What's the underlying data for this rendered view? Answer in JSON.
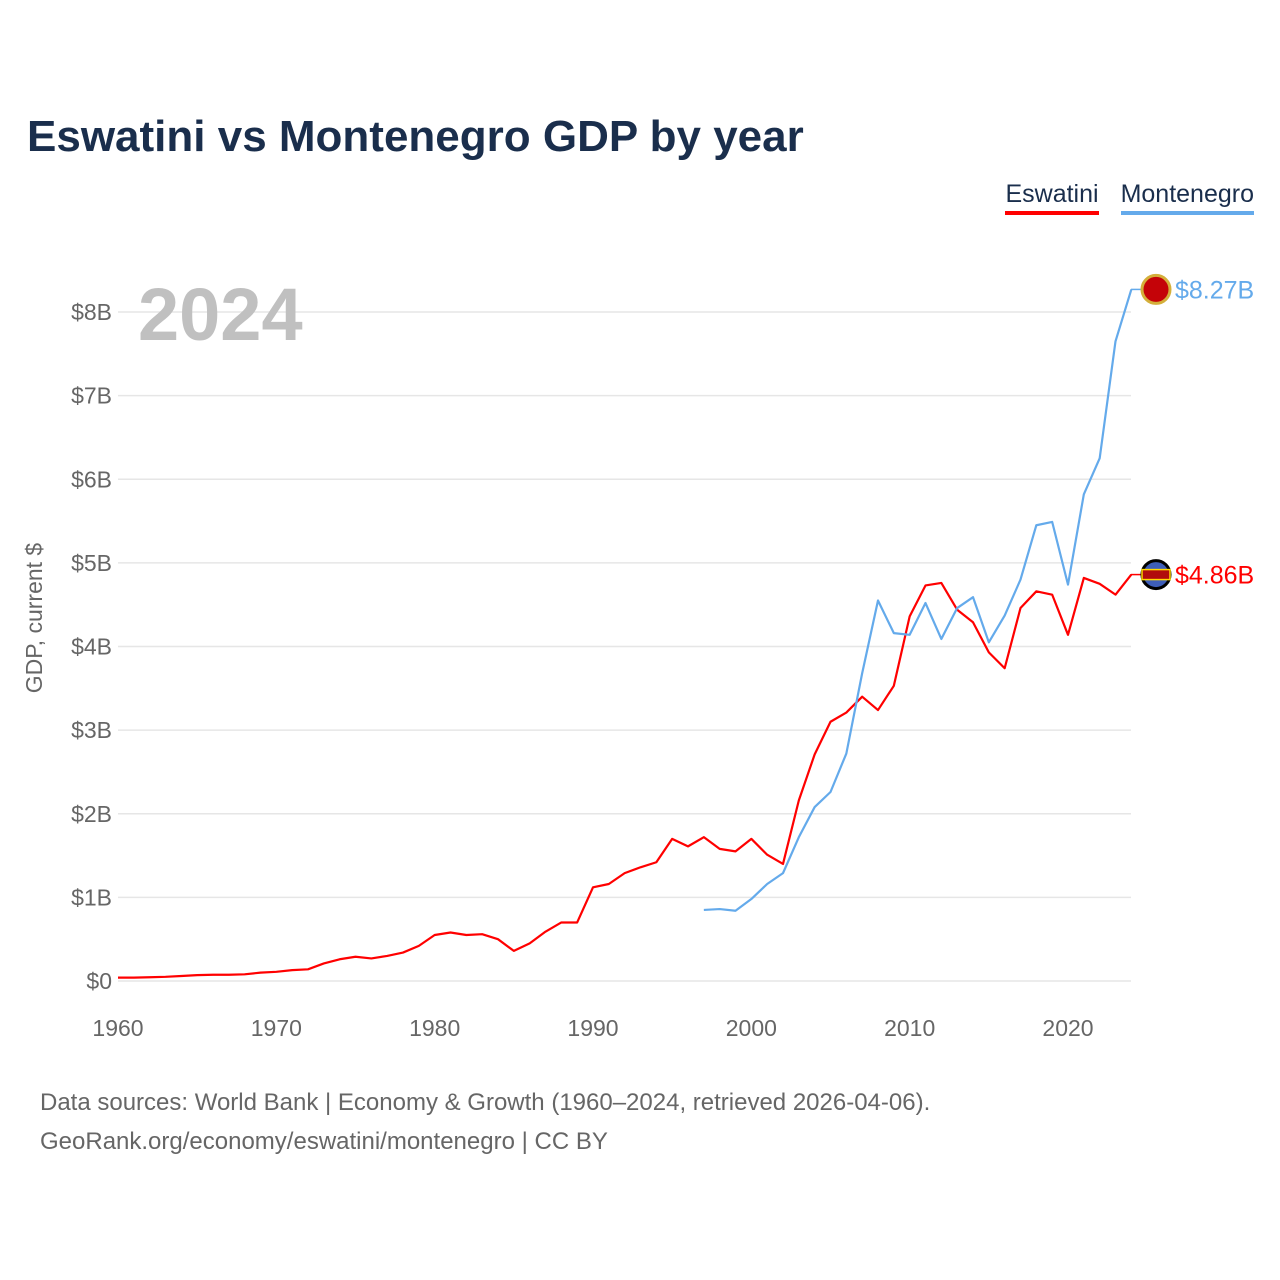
{
  "title": "Eswatini vs Montenegro GDP by year",
  "legend": [
    {
      "name": "Eswatini",
      "color": "#ff0000"
    },
    {
      "name": "Montenegro",
      "color": "#64aaeb"
    }
  ],
  "source_line1": "Data sources: World Bank | Economy & Growth (1960–2024, retrieved 2026-04-06).",
  "source_line2": "GeoRank.org/economy/eswatini/montenegro | CC BY",
  "chart_data": {
    "type": "line",
    "title": "Eswatini vs Montenegro GDP by year",
    "ylabel": "GDP, current $",
    "xlabel": "",
    "year_label": "2024",
    "xlim": [
      1960,
      2024
    ],
    "ylim": [
      0,
      8.27
    ],
    "x_ticks": [
      1960,
      1970,
      1980,
      1990,
      2000,
      2010,
      2020
    ],
    "y_ticks": [
      {
        "v": 0,
        "label": "$0"
      },
      {
        "v": 1,
        "label": "$1B"
      },
      {
        "v": 2,
        "label": "$2B"
      },
      {
        "v": 3,
        "label": "$3B"
      },
      {
        "v": 4,
        "label": "$4B"
      },
      {
        "v": 5,
        "label": "$5B"
      },
      {
        "v": 6,
        "label": "$6B"
      },
      {
        "v": 7,
        "label": "$7B"
      },
      {
        "v": 8,
        "label": "$8B"
      }
    ],
    "units": "billions USD",
    "series": [
      {
        "name": "Eswatini",
        "color": "#ff0000",
        "end_label": "$4.86B",
        "start_year": 1960,
        "values": [
          0.04,
          0.04,
          0.045,
          0.05,
          0.06,
          0.07,
          0.075,
          0.075,
          0.08,
          0.1,
          0.11,
          0.13,
          0.14,
          0.21,
          0.26,
          0.29,
          0.27,
          0.3,
          0.34,
          0.42,
          0.55,
          0.58,
          0.55,
          0.56,
          0.5,
          0.36,
          0.45,
          0.59,
          0.7,
          0.7,
          1.12,
          1.16,
          1.29,
          1.36,
          1.42,
          1.7,
          1.61,
          1.72,
          1.58,
          1.55,
          1.7,
          1.51,
          1.4,
          2.16,
          2.71,
          3.1,
          3.21,
          3.4,
          3.24,
          3.53,
          4.36,
          4.73,
          4.76,
          4.44,
          4.29,
          3.93,
          3.74,
          4.46,
          4.66,
          4.62,
          4.14,
          4.82,
          4.75,
          4.62,
          4.86
        ]
      },
      {
        "name": "Montenegro",
        "color": "#64aaeb",
        "end_label": "$8.27B",
        "start_year": 1997,
        "values": [
          0.85,
          0.86,
          0.84,
          0.98,
          1.16,
          1.29,
          1.72,
          2.08,
          2.26,
          2.72,
          3.68,
          4.55,
          4.16,
          4.14,
          4.52,
          4.09,
          4.46,
          4.59,
          4.05,
          4.37,
          4.8,
          5.45,
          5.49,
          4.74,
          5.82,
          6.25,
          7.65,
          8.27
        ]
      }
    ]
  }
}
